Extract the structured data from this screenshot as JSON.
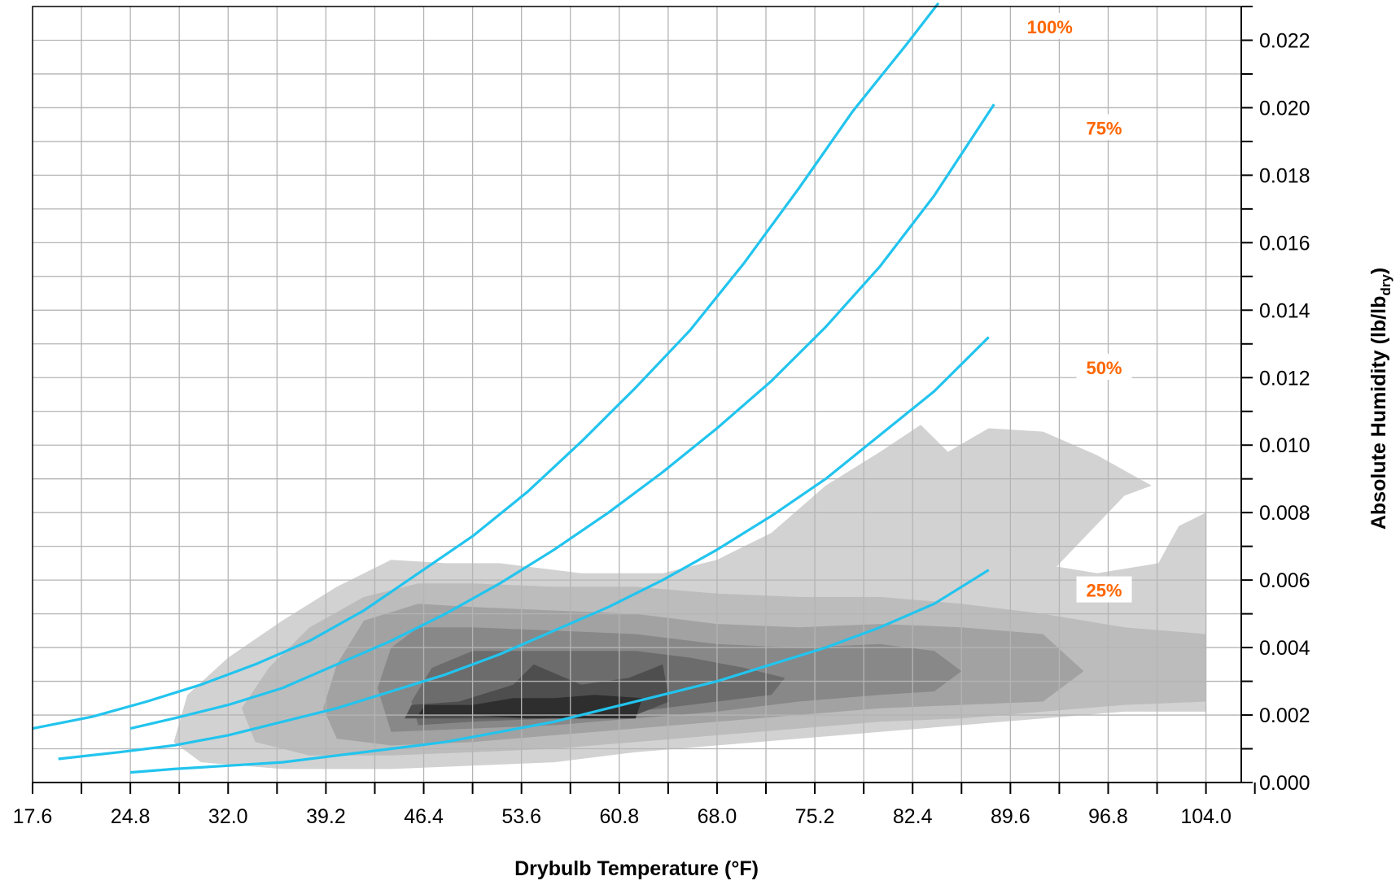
{
  "chart_data": {
    "type": "line",
    "title": "",
    "xlabel": "Drybulb Temperature (°F)",
    "ylabel_main": "Absolute Humidity (lb/lb",
    "ylabel_sub": "dry",
    "ylabel_close": ")",
    "xlim": [
      17.6,
      106.6
    ],
    "ylim": [
      0.0,
      0.023
    ],
    "x_ticks": [
      "17.6",
      "24.8",
      "32.0",
      "39.2",
      "46.4",
      "53.6",
      "60.8",
      "68.0",
      "75.2",
      "82.4",
      "89.6",
      "96.8",
      "104.0"
    ],
    "y_ticks": [
      "0.000",
      "0.002",
      "0.004",
      "0.006",
      "0.008",
      "0.010",
      "0.012",
      "0.014",
      "0.016",
      "0.018",
      "0.020",
      "0.022"
    ],
    "grid": true,
    "y_axis_side": "right",
    "line_color": "#22c4ee",
    "label_color": "#ff6600",
    "series": [
      {
        "label": "100%",
        "label_at": [
          92.5,
          0.0224
        ],
        "x": [
          17.6,
          22.0,
          26.0,
          30.0,
          34.0,
          38.0,
          42.0,
          46.0,
          50.0,
          54.0,
          58.0,
          62.0,
          66.0,
          70.0,
          74.0,
          78.0,
          82.0,
          84.3
        ],
        "y": [
          0.0016,
          0.00195,
          0.0024,
          0.0029,
          0.0035,
          0.0042,
          0.0051,
          0.0062,
          0.0073,
          0.0086,
          0.0101,
          0.0117,
          0.0134,
          0.0154,
          0.0176,
          0.0199,
          0.0219,
          0.0231
        ]
      },
      {
        "label": "75%",
        "label_at": [
          96.5,
          0.0194
        ],
        "x": [
          24.8,
          28.0,
          32.0,
          36.0,
          40.0,
          44.0,
          48.0,
          52.0,
          56.0,
          60.0,
          64.0,
          68.0,
          72.0,
          76.0,
          80.0,
          84.0,
          88.4
        ],
        "y": [
          0.0016,
          0.0019,
          0.0023,
          0.0028,
          0.0035,
          0.0042,
          0.005,
          0.0059,
          0.0069,
          0.008,
          0.0092,
          0.0105,
          0.0119,
          0.0135,
          0.0153,
          0.0174,
          0.0201
        ]
      },
      {
        "label": "50%",
        "label_at": [
          96.5,
          0.0123
        ],
        "x": [
          19.5,
          24.0,
          28.0,
          32.0,
          36.0,
          40.0,
          44.0,
          48.0,
          52.0,
          56.0,
          60.0,
          64.0,
          68.0,
          72.0,
          76.0,
          80.0,
          84.0,
          88.0
        ],
        "y": [
          0.0007,
          0.0009,
          0.0011,
          0.0014,
          0.0018,
          0.0022,
          0.0027,
          0.0032,
          0.0038,
          0.0045,
          0.0052,
          0.006,
          0.0069,
          0.0079,
          0.009,
          0.0103,
          0.0116,
          0.0132
        ]
      },
      {
        "label": "25%",
        "label_at": [
          96.5,
          0.0057
        ],
        "x": [
          24.8,
          28.0,
          32.0,
          36.0,
          40.0,
          44.0,
          48.0,
          52.0,
          56.0,
          60.0,
          64.0,
          68.0,
          72.0,
          76.0,
          80.0,
          84.0,
          88.0
        ],
        "y": [
          0.0003,
          0.0004,
          0.0005,
          0.0006,
          0.0008,
          0.001,
          0.0012,
          0.0015,
          0.0018,
          0.0022,
          0.0026,
          0.003,
          0.0035,
          0.004,
          0.0046,
          0.0053,
          0.0063
        ]
      }
    ],
    "density_levels": [
      {
        "shade": "#d2d2d2",
        "points": [
          [
            28.0,
            0.0012
          ],
          [
            30.0,
            0.0006
          ],
          [
            36.0,
            0.0004
          ],
          [
            44.0,
            0.0004
          ],
          [
            50.0,
            0.0005
          ],
          [
            56.0,
            0.0006
          ],
          [
            62.0,
            0.0009
          ],
          [
            68.0,
            0.0011
          ],
          [
            74.0,
            0.0013
          ],
          [
            80.0,
            0.0015
          ],
          [
            86.0,
            0.0017
          ],
          [
            92.0,
            0.0019
          ],
          [
            98.0,
            0.0021
          ],
          [
            104.0,
            0.0021
          ],
          [
            104.0,
            0.008
          ],
          [
            102.0,
            0.0076
          ],
          [
            100.5,
            0.0065
          ],
          [
            96.0,
            0.0062
          ],
          [
            93.0,
            0.0064
          ],
          [
            98.0,
            0.0085
          ],
          [
            100.0,
            0.0088
          ],
          [
            96.0,
            0.0097
          ],
          [
            92.0,
            0.0104
          ],
          [
            88.0,
            0.0105
          ],
          [
            85.0,
            0.0098
          ],
          [
            83.0,
            0.0106
          ],
          [
            80.0,
            0.0098
          ],
          [
            76.0,
            0.0088
          ],
          [
            72.0,
            0.0074
          ],
          [
            68.0,
            0.0066
          ],
          [
            64.0,
            0.0062
          ],
          [
            58.0,
            0.0062
          ],
          [
            52.0,
            0.0065
          ],
          [
            48.0,
            0.0065
          ],
          [
            44.0,
            0.0066
          ],
          [
            40.0,
            0.0058
          ],
          [
            36.0,
            0.0048
          ],
          [
            32.0,
            0.0037
          ],
          [
            29.0,
            0.0026
          ]
        ]
      },
      {
        "shade": "#bcbcbc",
        "points": [
          [
            34.0,
            0.0012
          ],
          [
            38.0,
            0.0008
          ],
          [
            44.0,
            0.0008
          ],
          [
            50.0,
            0.0009
          ],
          [
            56.0,
            0.001
          ],
          [
            62.0,
            0.0012
          ],
          [
            68.0,
            0.0014
          ],
          [
            74.0,
            0.0016
          ],
          [
            80.0,
            0.0018
          ],
          [
            86.0,
            0.0019
          ],
          [
            92.0,
            0.0021
          ],
          [
            98.0,
            0.0023
          ],
          [
            104.0,
            0.0024
          ],
          [
            104.0,
            0.0044
          ],
          [
            98.0,
            0.0046
          ],
          [
            92.0,
            0.005
          ],
          [
            86.0,
            0.0053
          ],
          [
            80.0,
            0.0055
          ],
          [
            74.0,
            0.0055
          ],
          [
            68.0,
            0.0056
          ],
          [
            62.0,
            0.0058
          ],
          [
            56.0,
            0.0058
          ],
          [
            50.0,
            0.0059
          ],
          [
            46.0,
            0.0059
          ],
          [
            42.0,
            0.0055
          ],
          [
            38.0,
            0.0046
          ],
          [
            35.0,
            0.0034
          ],
          [
            33.0,
            0.0022
          ]
        ]
      },
      {
        "shade": "#a2a2a2",
        "points": [
          [
            40.0,
            0.0013
          ],
          [
            44.0,
            0.0011
          ],
          [
            50.0,
            0.0012
          ],
          [
            56.0,
            0.0014
          ],
          [
            62.0,
            0.0016
          ],
          [
            68.0,
            0.0018
          ],
          [
            74.0,
            0.002
          ],
          [
            80.0,
            0.0022
          ],
          [
            86.0,
            0.0023
          ],
          [
            92.0,
            0.0024
          ],
          [
            95.0,
            0.0033
          ],
          [
            92.0,
            0.0044
          ],
          [
            86.0,
            0.0046
          ],
          [
            80.0,
            0.0047
          ],
          [
            74.0,
            0.0046
          ],
          [
            68.0,
            0.0047
          ],
          [
            62.0,
            0.005
          ],
          [
            56.0,
            0.0051
          ],
          [
            50.0,
            0.0052
          ],
          [
            46.0,
            0.0053
          ],
          [
            42.0,
            0.0048
          ],
          [
            40.0,
            0.0035
          ],
          [
            39.0,
            0.0022
          ]
        ]
      },
      {
        "shade": "#888888",
        "points": [
          [
            44.0,
            0.0015
          ],
          [
            50.0,
            0.0016
          ],
          [
            56.0,
            0.0017
          ],
          [
            62.0,
            0.0019
          ],
          [
            68.0,
            0.0021
          ],
          [
            74.0,
            0.0024
          ],
          [
            80.0,
            0.0026
          ],
          [
            84.0,
            0.0027
          ],
          [
            86.0,
            0.0033
          ],
          [
            84.0,
            0.0039
          ],
          [
            80.0,
            0.0041
          ],
          [
            74.0,
            0.004
          ],
          [
            68.0,
            0.0041
          ],
          [
            62.0,
            0.0044
          ],
          [
            56.0,
            0.0045
          ],
          [
            50.0,
            0.0046
          ],
          [
            46.0,
            0.0046
          ],
          [
            44.0,
            0.004
          ],
          [
            43.0,
            0.0028
          ]
        ]
      },
      {
        "shade": "#6c6c6c",
        "points": [
          [
            46.0,
            0.0017
          ],
          [
            50.0,
            0.0018
          ],
          [
            56.0,
            0.0019
          ],
          [
            62.0,
            0.0021
          ],
          [
            66.0,
            0.0023
          ],
          [
            72.0,
            0.0026
          ],
          [
            73.0,
            0.0031
          ],
          [
            70.0,
            0.0034
          ],
          [
            66.0,
            0.0037
          ],
          [
            62.0,
            0.0039
          ],
          [
            56.0,
            0.0039
          ],
          [
            50.0,
            0.0039
          ],
          [
            47.0,
            0.0034
          ],
          [
            45.5,
            0.0024
          ]
        ]
      },
      {
        "shade": "#4e4e4e",
        "points": [
          [
            45.0,
            0.0019
          ],
          [
            50.0,
            0.0019
          ],
          [
            54.0,
            0.0019
          ],
          [
            58.0,
            0.002
          ],
          [
            62.0,
            0.002
          ],
          [
            64.5,
            0.0024
          ],
          [
            64.0,
            0.0035
          ],
          [
            61.5,
            0.0031
          ],
          [
            58.0,
            0.0029
          ],
          [
            54.5,
            0.0035
          ],
          [
            53.0,
            0.0029
          ],
          [
            49.0,
            0.0024
          ],
          [
            45.5,
            0.0023
          ]
        ]
      },
      {
        "shade": "#2e2e2e",
        "points": [
          [
            46.0,
            0.002
          ],
          [
            50.0,
            0.002
          ],
          [
            54.0,
            0.0019
          ],
          [
            58.0,
            0.0019
          ],
          [
            62.0,
            0.0019
          ],
          [
            62.5,
            0.0025
          ],
          [
            59.0,
            0.0026
          ],
          [
            56.0,
            0.0025
          ],
          [
            53.0,
            0.0025
          ],
          [
            50.0,
            0.0023
          ],
          [
            46.5,
            0.0023
          ]
        ]
      }
    ]
  }
}
